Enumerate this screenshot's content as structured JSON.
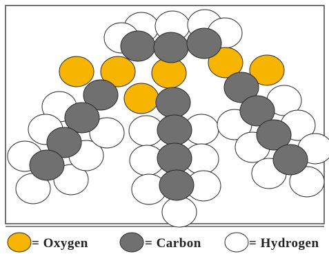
{
  "colors": {
    "oxygen": "#f7b500",
    "carbon": "#707070",
    "hydrogen": "#ffffff",
    "outline": "#2a2a2a"
  },
  "legend": {
    "oxygen_label": "= Oxygen",
    "carbon_label": "= Carbon",
    "hydrogen_label": "= Hydrogen"
  }
}
